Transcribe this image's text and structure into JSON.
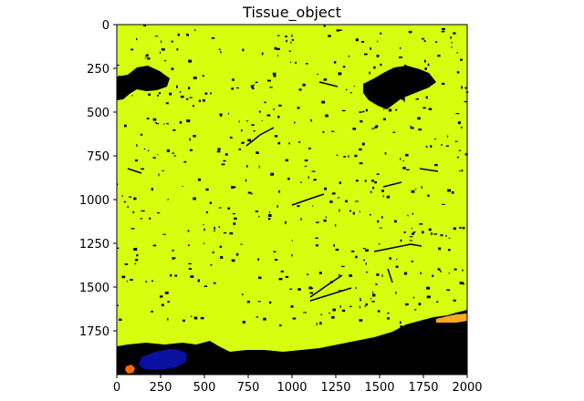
{
  "chart_data": {
    "type": "heatmap",
    "title": "Tissue_object",
    "xlabel": "",
    "ylabel": "",
    "xlim": [
      0,
      2000
    ],
    "ylim": [
      2000,
      0
    ],
    "x_ticks": [
      0,
      250,
      500,
      750,
      1000,
      1250,
      1500,
      1750,
      2000
    ],
    "y_ticks": [
      0,
      250,
      500,
      750,
      1000,
      1250,
      1500,
      1750
    ],
    "grid": false,
    "colors": {
      "tissue": "#d7fe0e",
      "background": "#000000",
      "object_blue": "#0a10a0",
      "object_orange": "#ff6a00",
      "object_light_orange": "#ffaa22"
    },
    "regions": [
      {
        "label": "tissue",
        "color": "#d7fe0e",
        "description": "majority of image"
      },
      {
        "label": "background",
        "color": "#000000",
        "description": "bottom edge band and scattered holes"
      },
      {
        "label": "object_blue",
        "color": "#0a10a0",
        "extent_x": [
          130,
          330
        ],
        "extent_y": [
          1870,
          1990
        ]
      },
      {
        "label": "object_orange",
        "color": "#ff6a00",
        "extent_x": [
          50,
          110
        ],
        "extent_y": [
          1950,
          1990
        ]
      },
      {
        "label": "object_light_orange",
        "color": "#ffaa22",
        "extent_x": [
          1820,
          2000
        ],
        "extent_y": [
          1650,
          1720
        ]
      }
    ]
  }
}
